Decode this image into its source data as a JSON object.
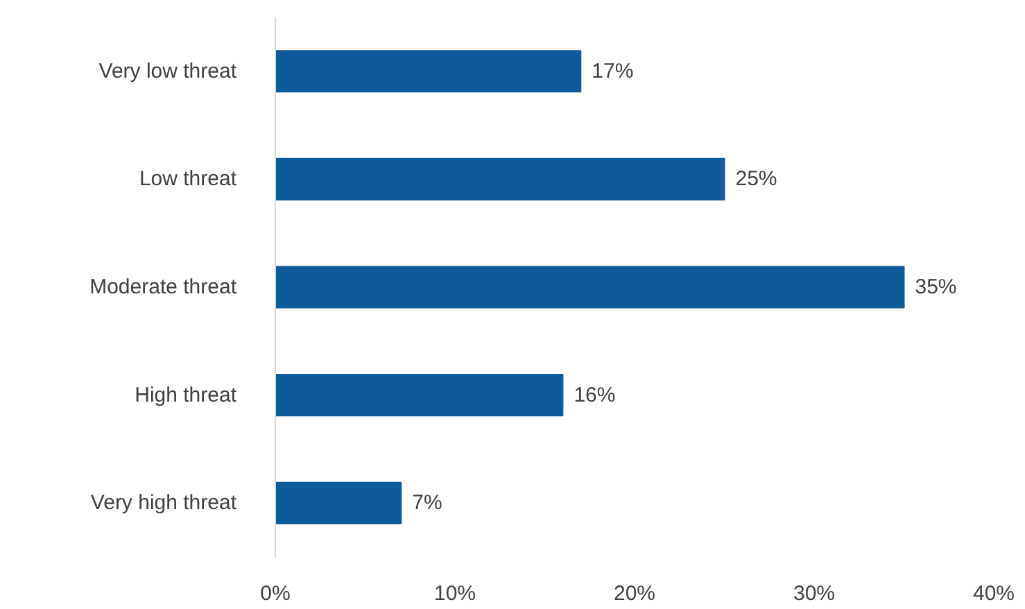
{
  "chart_data": {
    "type": "bar",
    "orientation": "horizontal",
    "categories": [
      "Very low threat",
      "Low threat",
      "Moderate threat",
      "High threat",
      "Very high threat"
    ],
    "values": [
      17,
      25,
      35,
      16,
      7
    ],
    "value_labels": [
      "17%",
      "25%",
      "35%",
      "16%",
      "7%"
    ],
    "color": "#0e5a9a",
    "xlim": [
      0,
      40
    ],
    "xticks": [
      {
        "value": 0,
        "label": "0%"
      },
      {
        "value": 10,
        "label": "10%"
      },
      {
        "value": 20,
        "label": "20%"
      },
      {
        "value": 30,
        "label": "30%"
      },
      {
        "value": 40,
        "label": "40%"
      }
    ],
    "grid": false
  }
}
